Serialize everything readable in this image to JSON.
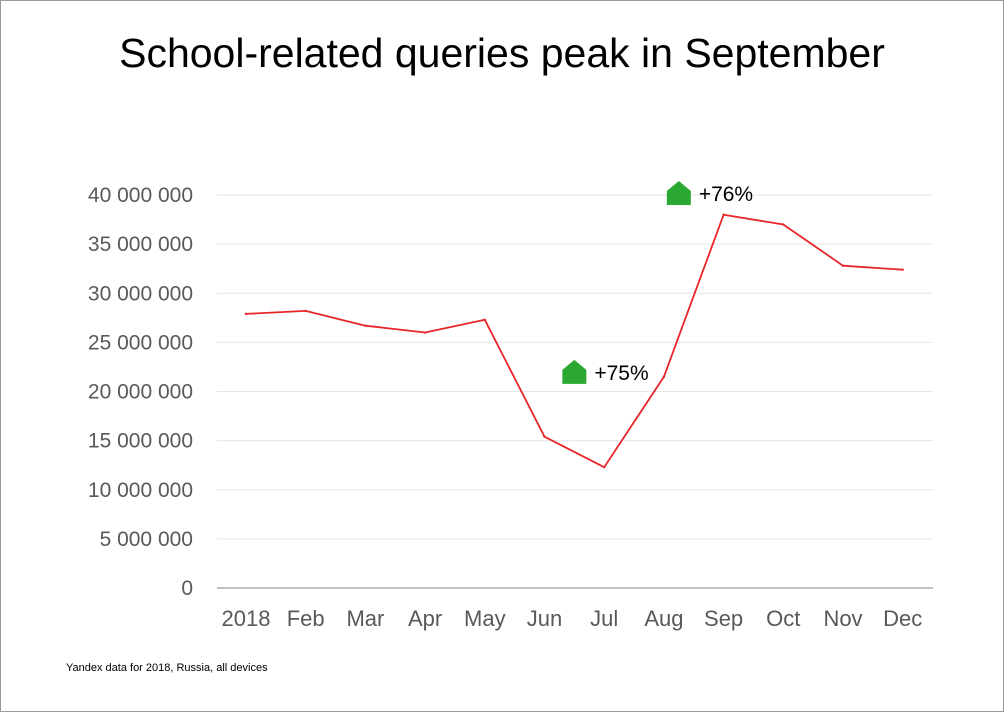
{
  "title": "School-related queries peak in September",
  "source_note": "Yandex data for 2018, Russia, all devices",
  "colors": {
    "line": "#e8262a",
    "annotation": "#2aa831",
    "grid": "#e6e6e6",
    "axis": "#9a9a9a",
    "tick_text": "#595959"
  },
  "chart_data": {
    "type": "line",
    "title": "School-related queries peak in September",
    "categories": [
      "2018",
      "Feb",
      "Mar",
      "Apr",
      "May",
      "Jun",
      "Jul",
      "Aug",
      "Sep",
      "Oct",
      "Nov",
      "Dec"
    ],
    "series": [
      {
        "values": [
          27900000,
          28200000,
          26700000,
          26000000,
          27300000,
          15400000,
          12300000,
          21500000,
          38000000,
          37000000,
          32800000,
          32400000
        ]
      }
    ],
    "ylim": [
      0,
      40000000
    ],
    "y_ticks": [
      {
        "value": 0,
        "label": "0"
      },
      {
        "value": 5000000,
        "label": "5 000 000"
      },
      {
        "value": 10000000,
        "label": "10 000 000"
      },
      {
        "value": 15000000,
        "label": "15 000 000"
      },
      {
        "value": 20000000,
        "label": "20 000 000"
      },
      {
        "value": 25000000,
        "label": "25 000 000"
      },
      {
        "value": 30000000,
        "label": "30 000 000"
      },
      {
        "value": 35000000,
        "label": "35 000 000"
      },
      {
        "value": 40000000,
        "label": "40 000 000"
      }
    ],
    "grid": true,
    "legend": "none",
    "annotations": [
      {
        "text": "+75%",
        "x": 5.5,
        "y": 22000000,
        "icon": "up-arrow-icon"
      },
      {
        "text": "+76%",
        "x": 7.25,
        "y": 40200000,
        "icon": "up-arrow-icon"
      }
    ]
  }
}
